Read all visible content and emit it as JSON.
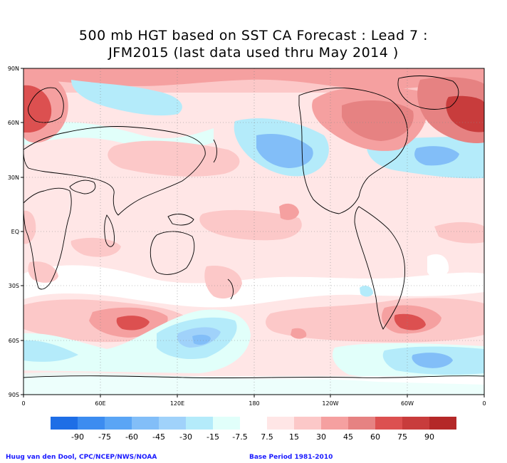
{
  "title": {
    "line1": "500 mb HGT based on SST CA Forecast : Lead 7 :",
    "line2": "JFM2015 (last data used thru May 2014 )"
  },
  "axes": {
    "lat_labels": [
      "90N",
      "60N",
      "30N",
      "EQ",
      "30S",
      "60S",
      "90S"
    ],
    "lon_labels": [
      "0",
      "60E",
      "120E",
      "180",
      "120W",
      "60W",
      "0"
    ]
  },
  "legend": {
    "labels": [
      "-90",
      "-75",
      "-60",
      "-45",
      "-30",
      "-15",
      "-7.5",
      "7.5",
      "15",
      "30",
      "45",
      "60",
      "75",
      "90"
    ],
    "colors": [
      "#1e6ee6",
      "#3c8cf0",
      "#5aa5f5",
      "#82bef8",
      "#a0d2fa",
      "#b4ebfa",
      "#e1fffa",
      "#ffffff",
      "#ffe6e6",
      "#fcc8c8",
      "#f5a0a0",
      "#e68282",
      "#dc5050",
      "#c83c3c",
      "#b42828"
    ]
  },
  "footer": {
    "credit": "Huug van den Dool, CPC/NCEP/NWS/NOAA",
    "base_period": "Base Period 1981-2010"
  }
}
